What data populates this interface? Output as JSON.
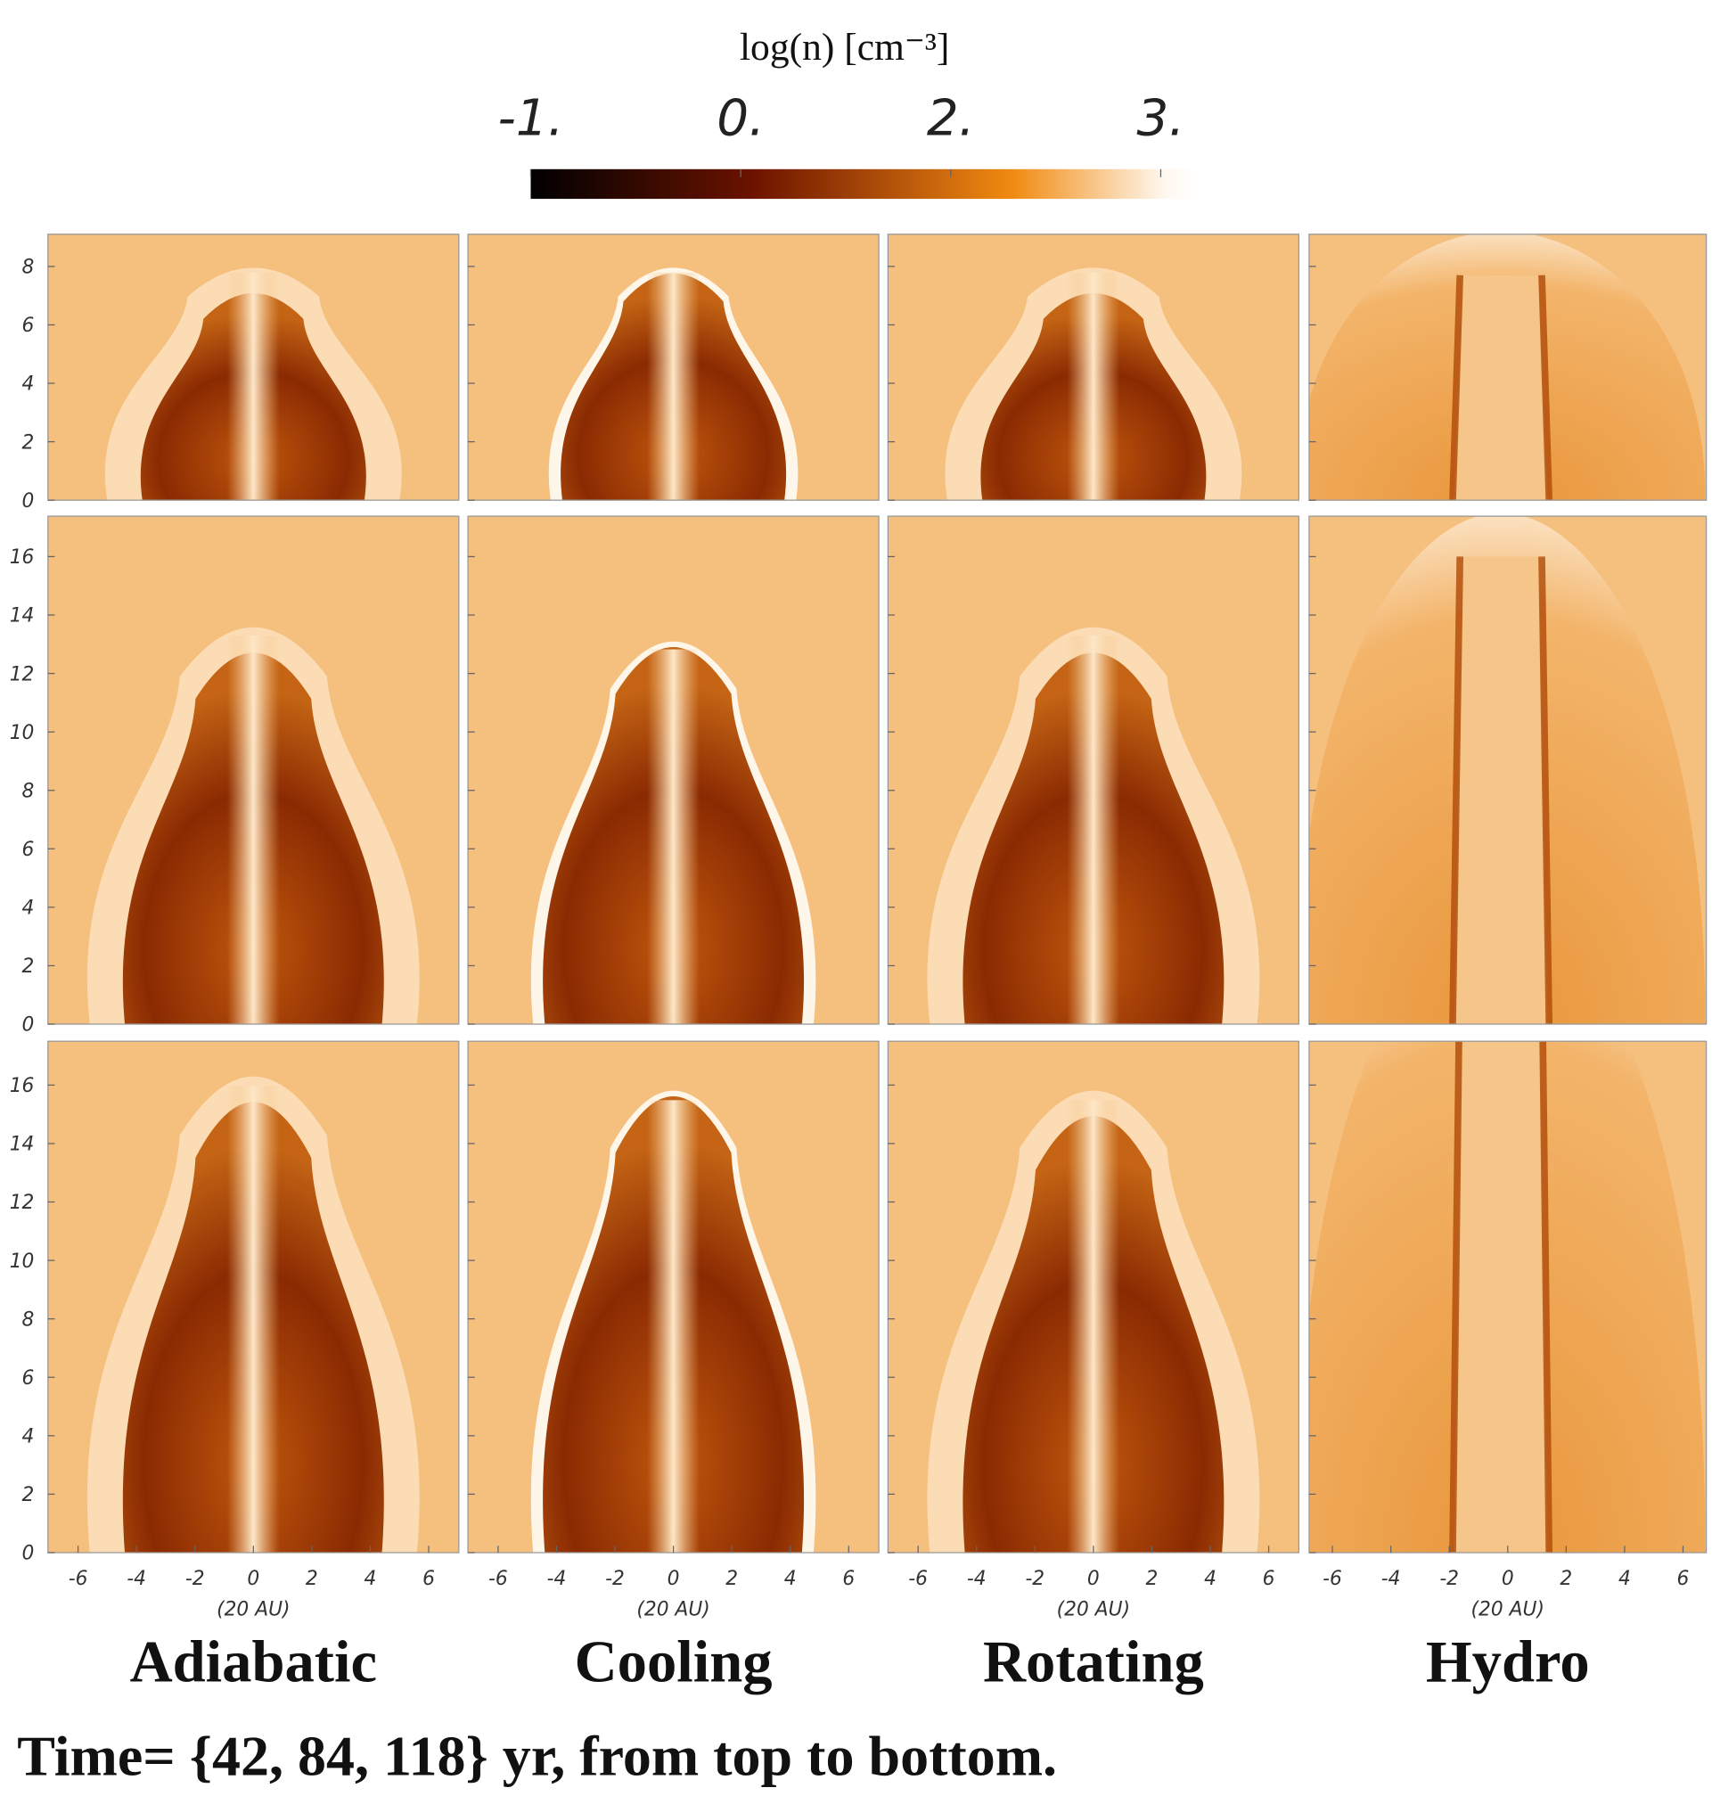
{
  "colorbar": {
    "label": "log(n) [cm⁻³]",
    "ticks": [
      {
        "value": -1,
        "label": "-1."
      },
      {
        "value": 0,
        "label": "0."
      },
      {
        "value": 2,
        "label": "2."
      },
      {
        "value": 3,
        "label": "3."
      }
    ]
  },
  "x_axis": {
    "label": "(20 AU)",
    "ticks": [
      -6,
      -4,
      -2,
      0,
      2,
      4,
      6
    ]
  },
  "rows": [
    {
      "yticks": [
        0,
        2,
        4,
        6,
        8
      ]
    },
    {
      "yticks": [
        0,
        2,
        4,
        6,
        8,
        10,
        12,
        14,
        16
      ]
    },
    {
      "yticks": [
        0,
        2,
        4,
        6,
        8,
        10,
        12,
        14,
        16
      ]
    }
  ],
  "columns": [
    "Adiabatic",
    "Cooling",
    "Rotating",
    "Hydro"
  ],
  "caption": "Time= {42, 84, 118} yr, from top to bottom."
}
